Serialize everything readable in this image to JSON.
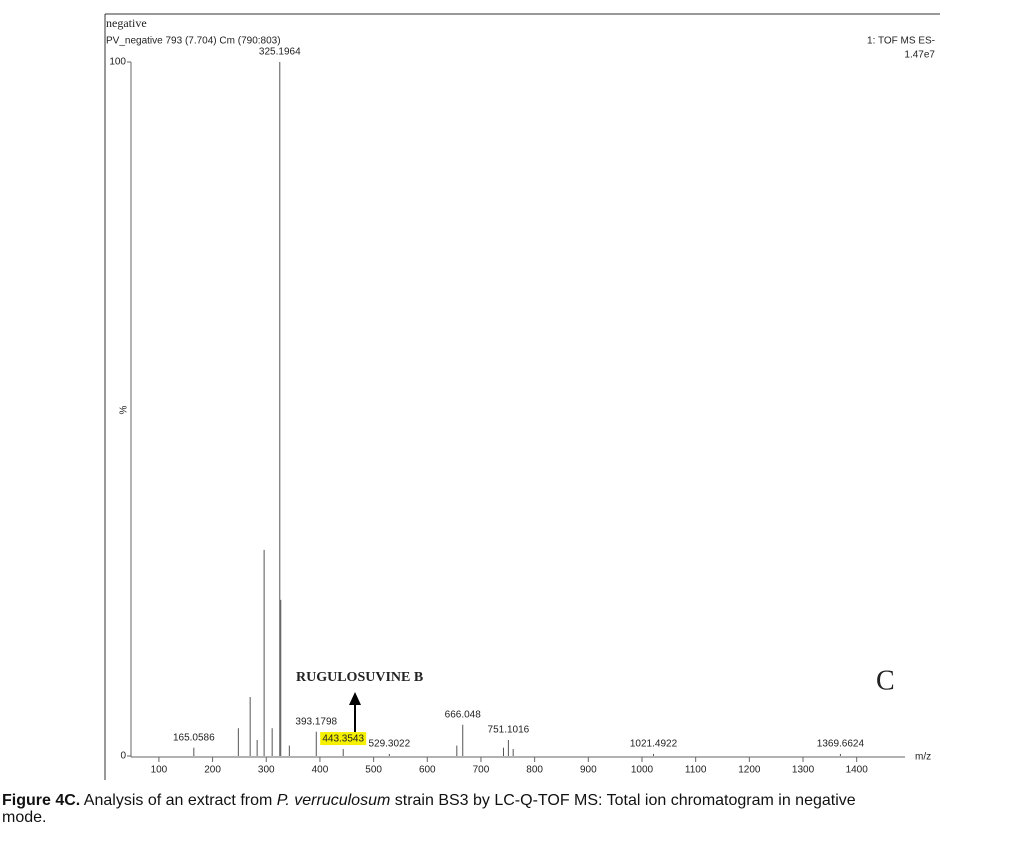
{
  "chart_data": {
    "type": "spectrum",
    "header": "negative",
    "subtitle": "PV_negative 793 (7.704) Cm (790:803)",
    "instrument": "1: TOF MS ES-",
    "intensity": "1.47e7",
    "y_label": "%",
    "x_label": "m/z",
    "annotation": "RUGULOSUVINE B",
    "panel": "C",
    "highlight": {
      "x": 443.3543,
      "color": "#f5f000"
    },
    "color": "#555555",
    "xlim": [
      48,
      1490
    ],
    "ylim": [
      0,
      100
    ],
    "xticks": [
      100,
      200,
      300,
      400,
      500,
      600,
      700,
      800,
      900,
      1000,
      1100,
      1200,
      1300,
      1400
    ],
    "yticks": [
      0,
      100
    ],
    "labeled_peaks": {
      "x": [
        165.0586,
        325.1964,
        393.1798,
        443.3543,
        529.3022,
        666.048,
        751.1016,
        1021.4922,
        1369.6624
      ],
      "values": [
        1.2,
        100,
        3.5,
        1.0,
        0.3,
        4.5,
        2.3,
        0.3,
        0.3
      ]
    },
    "other_peaks": {
      "x": [
        248,
        270,
        283,
        296,
        311,
        327,
        343,
        655,
        742,
        760
      ],
      "values": [
        4,
        8.5,
        2.3,
        29.7,
        4,
        22.5,
        1.5,
        1.5,
        1.2,
        1.0
      ]
    }
  },
  "caption": {
    "label": "Figure 4C.",
    "text_before": "Analysis of an extract from ",
    "species": "P. verruculosum",
    "text_after": " strain BS3 by LC-Q-TOF MS: Total ion chromatogram in negative",
    "line2": "mode."
  }
}
